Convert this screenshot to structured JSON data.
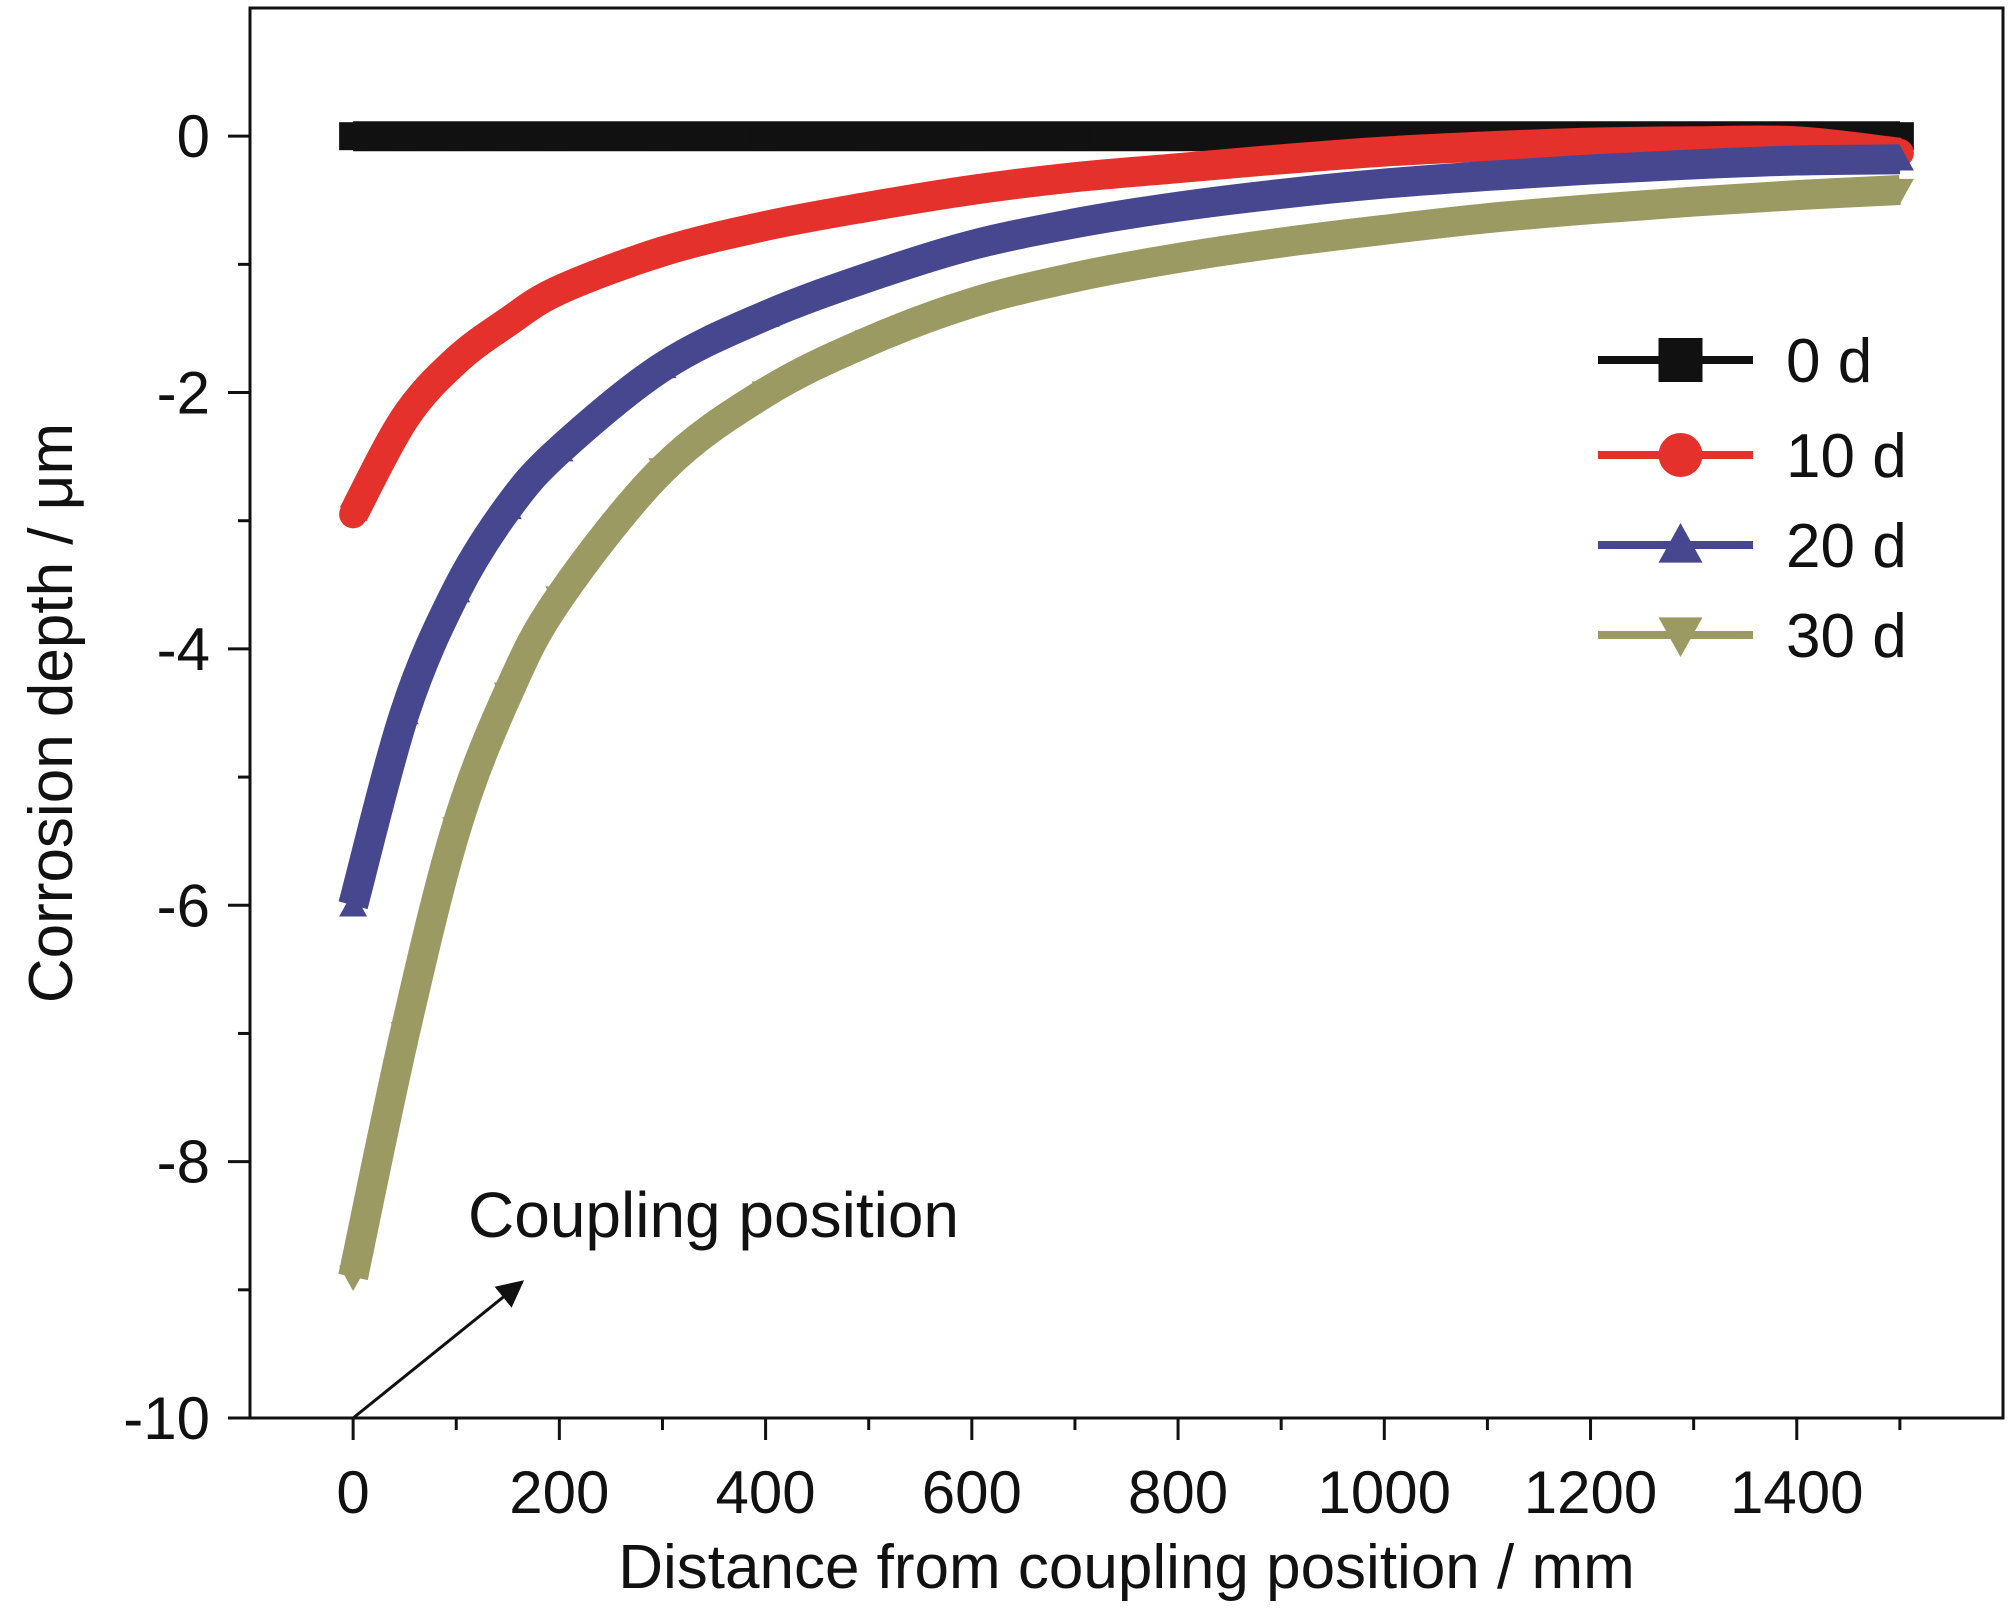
{
  "chart_data": {
    "type": "line",
    "title": "",
    "xlabel": "Distance from coupling position / mm",
    "ylabel": "Corrosion depth / μm",
    "xlim": [
      -100,
      1600
    ],
    "ylim": [
      -10,
      1
    ],
    "xticks": [
      0,
      200,
      400,
      600,
      800,
      1000,
      1200,
      1400
    ],
    "yticks": [
      0,
      -2,
      -4,
      -6,
      -8,
      -10
    ],
    "grid": false,
    "legend_position": "right",
    "annotation": {
      "text": "Coupling position",
      "arrow_target": [
        0,
        -10
      ]
    },
    "x": [
      0,
      50,
      100,
      150,
      200,
      300,
      400,
      500,
      600,
      700,
      800,
      900,
      1000,
      1100,
      1200,
      1300,
      1400,
      1500
    ],
    "series": [
      {
        "name": "0 d",
        "color": "#111111",
        "marker": "square",
        "values": [
          0,
          0,
          0,
          0,
          0,
          0,
          0,
          0,
          0,
          0,
          0,
          0,
          0,
          0,
          0,
          0,
          0,
          0
        ]
      },
      {
        "name": "10 d",
        "color": "#e4312b",
        "marker": "circle",
        "values": [
          -2.95,
          -2.2,
          -1.75,
          -1.45,
          -1.2,
          -0.9,
          -0.7,
          -0.55,
          -0.42,
          -0.32,
          -0.25,
          -0.18,
          -0.12,
          -0.08,
          -0.05,
          -0.04,
          -0.04,
          -0.13
        ]
      },
      {
        "name": "20 d",
        "color": "#46478f",
        "marker": "triangle-up",
        "values": [
          -6.0,
          -4.5,
          -3.55,
          -2.9,
          -2.45,
          -1.8,
          -1.4,
          -1.1,
          -0.85,
          -0.68,
          -0.55,
          -0.45,
          -0.37,
          -0.31,
          -0.26,
          -0.22,
          -0.19,
          -0.18
        ]
      },
      {
        "name": "30 d",
        "color": "#9a9a62",
        "marker": "triangle-down",
        "values": [
          -8.9,
          -7.0,
          -5.4,
          -4.35,
          -3.6,
          -2.6,
          -2.0,
          -1.6,
          -1.3,
          -1.1,
          -0.95,
          -0.83,
          -0.73,
          -0.64,
          -0.57,
          -0.51,
          -0.46,
          -0.42
        ]
      }
    ]
  }
}
